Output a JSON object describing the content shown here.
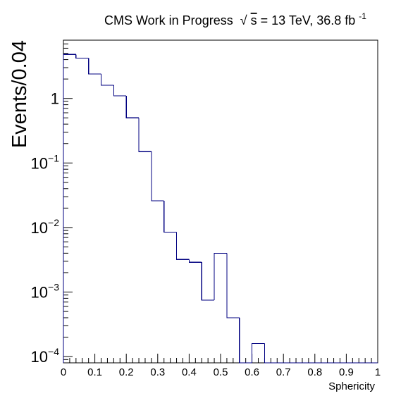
{
  "figure": {
    "title": "CMS Work in Progress",
    "title_sqrt_symbol": "√",
    "title_sqrt_var": "s",
    "title_energy": " = 13 TeV, 36.8 fb",
    "title_lumi_exp": "-1"
  },
  "chart_data": {
    "type": "histogram",
    "title": "CMS Work in Progress √s = 13 TeV, 36.8 fb-1",
    "xlabel": "Sphericity",
    "ylabel": "Events/0.04",
    "xlim": [
      0,
      1
    ],
    "ylim": [
      8e-05,
      8
    ],
    "yscale": "log",
    "grid": false,
    "legend": "none",
    "line_color": "#000080",
    "bin_edges": [
      0,
      0.04,
      0.08,
      0.12,
      0.16,
      0.2,
      0.24,
      0.28,
      0.32,
      0.36,
      0.4,
      0.44,
      0.48,
      0.52,
      0.56,
      0.6,
      0.64,
      0.68,
      0.72,
      0.76,
      0.8,
      0.84,
      0.88,
      0.92,
      0.96,
      1.0
    ],
    "counts": [
      4.8,
      4.2,
      2.4,
      1.6,
      1.1,
      0.5,
      0.15,
      0.026,
      0.0085,
      0.0032,
      0.0029,
      0.00075,
      0.004,
      0.0004,
      0,
      0.00016,
      0,
      0,
      0,
      0,
      0,
      0,
      0,
      0,
      0
    ],
    "x_ticks": [
      0,
      0.1,
      0.2,
      0.3,
      0.4,
      0.5,
      0.6,
      0.7,
      0.8,
      0.9,
      1
    ],
    "x_tick_labels": [
      "0",
      "0.1",
      "0.2",
      "0.3",
      "0.4",
      "0.5",
      "0.6",
      "0.7",
      "0.8",
      "0.9",
      "1"
    ],
    "y_ticks": [
      {
        "value": 1,
        "base": "1",
        "exp": ""
      },
      {
        "value": 0.1,
        "base": "10",
        "exp": "−1"
      },
      {
        "value": 0.01,
        "base": "10",
        "exp": "−2"
      },
      {
        "value": 0.001,
        "base": "10",
        "exp": "−3"
      },
      {
        "value": 0.0001,
        "base": "10",
        "exp": "−4"
      }
    ]
  }
}
